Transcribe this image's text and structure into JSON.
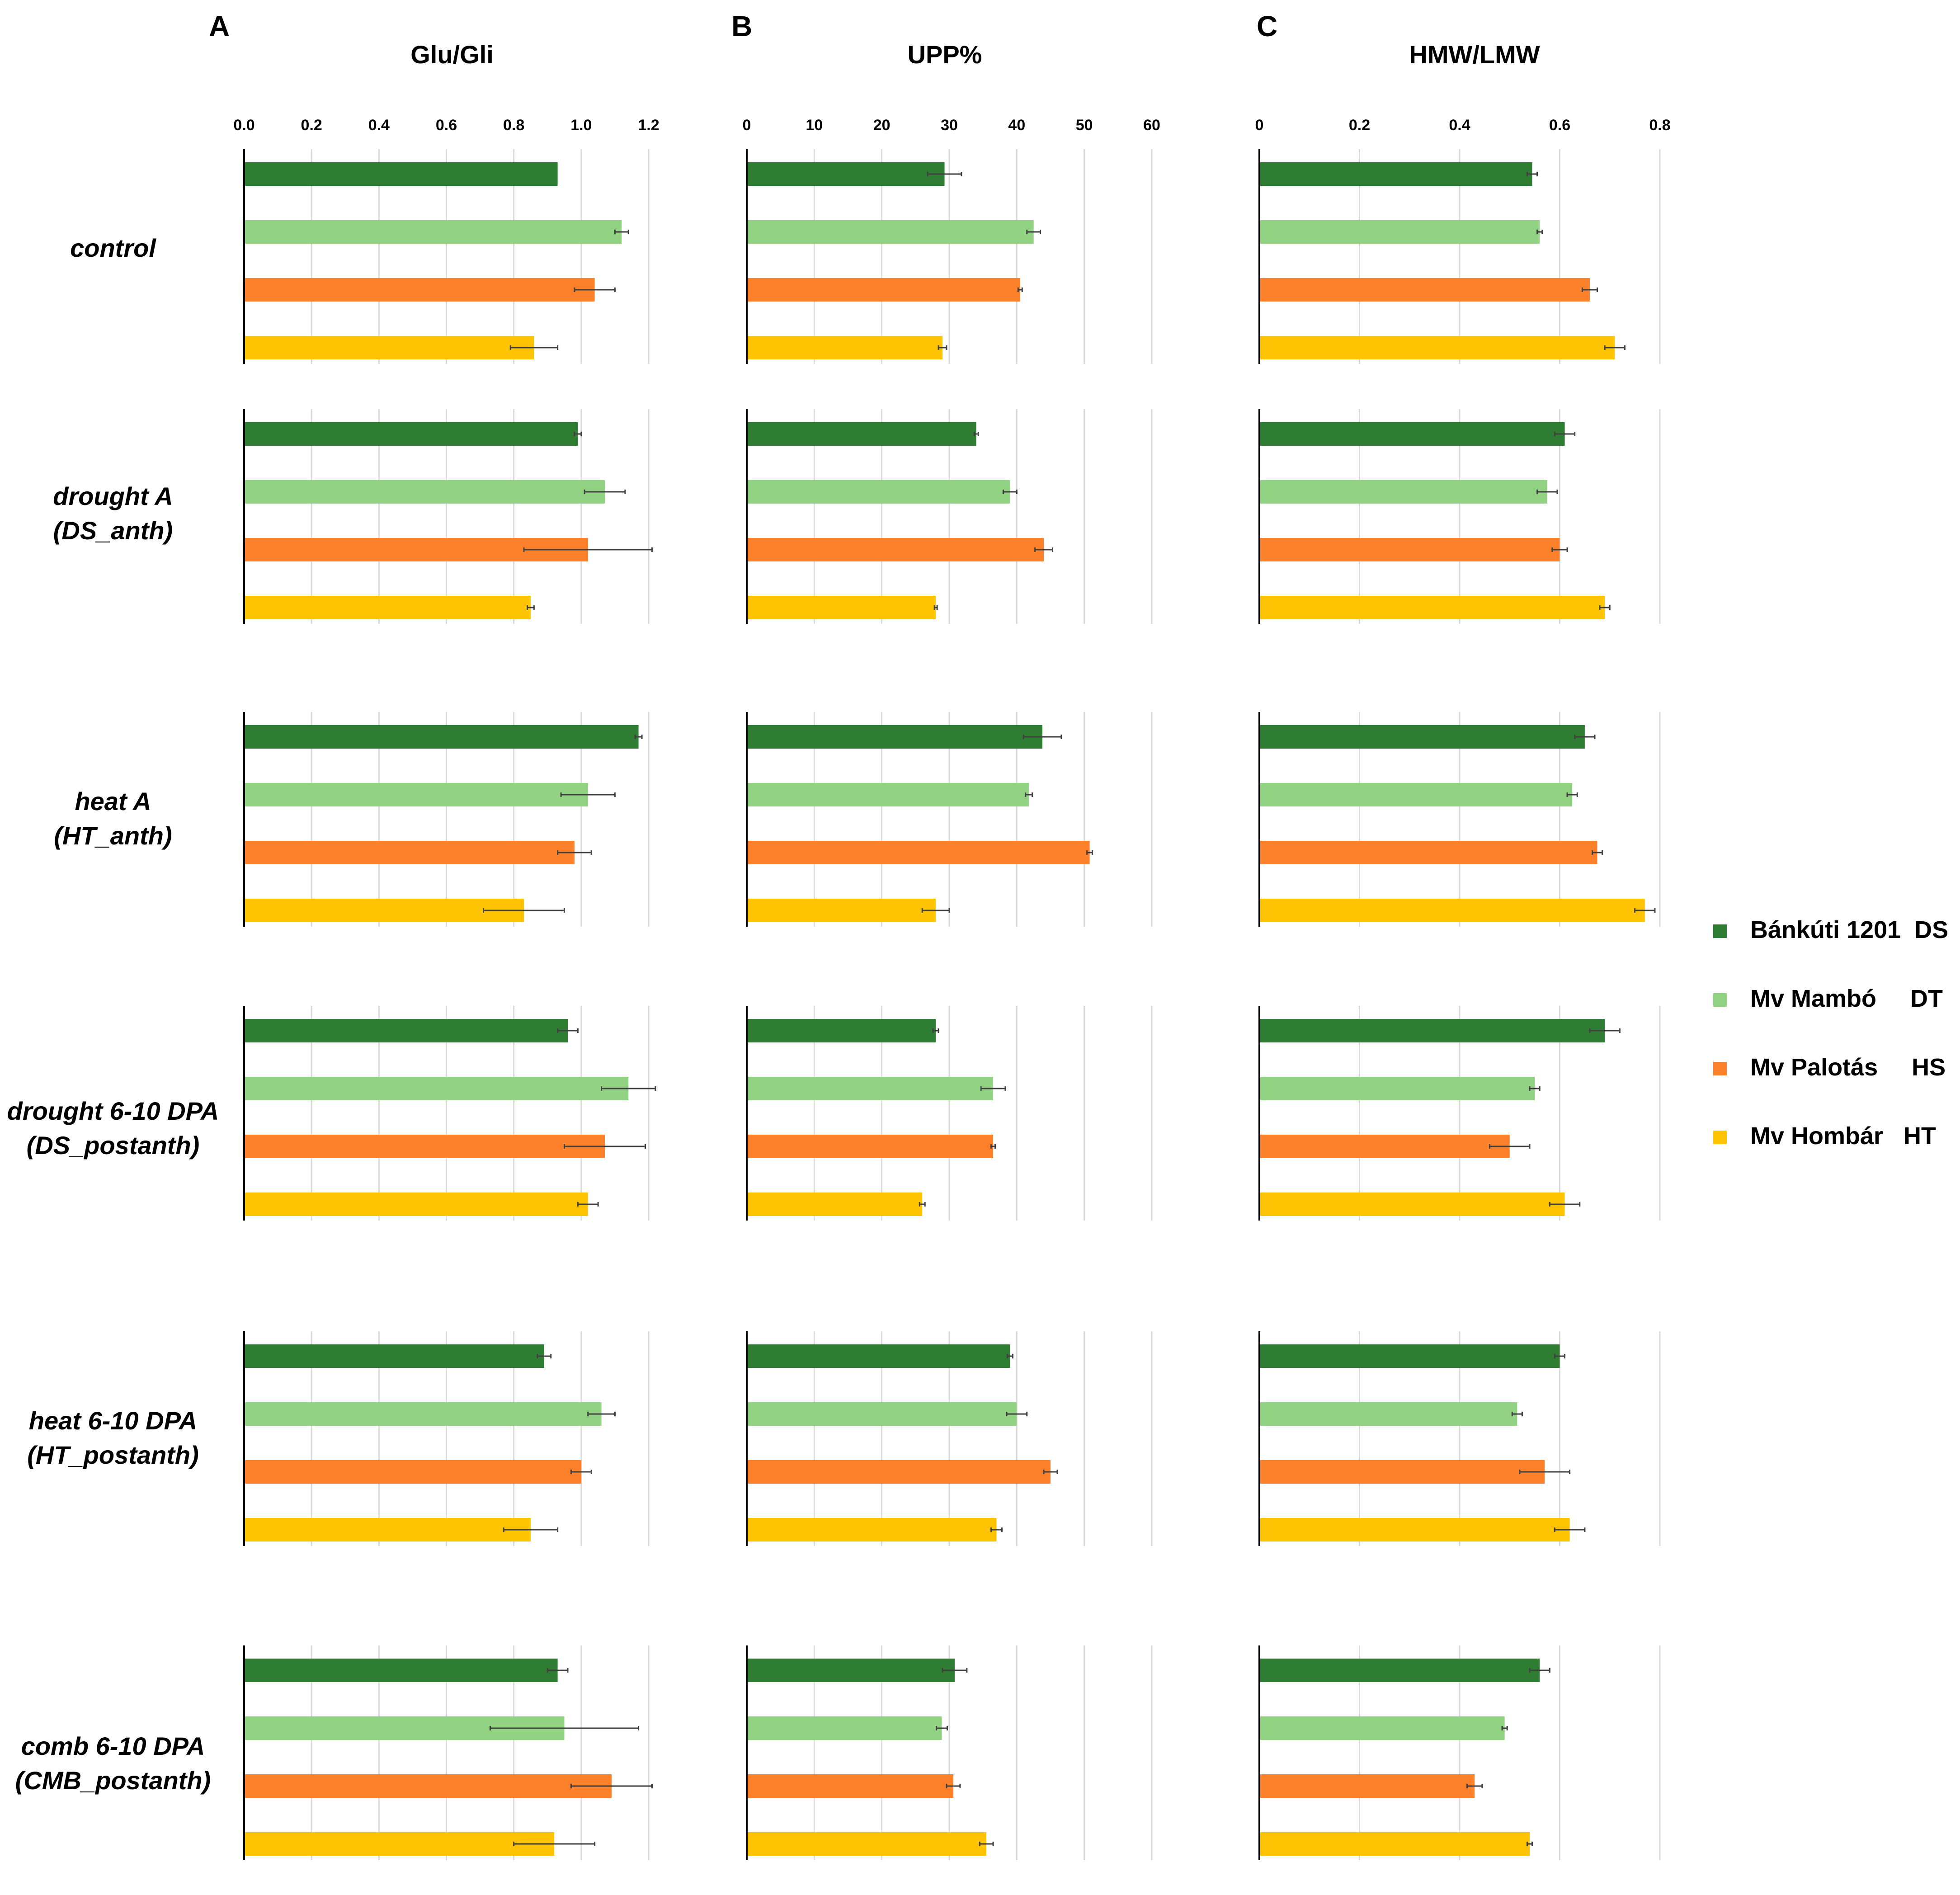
{
  "chart_data": [
    {
      "type": "bar",
      "orientation": "horizontal",
      "panel": "A",
      "title": "Glu/Gli",
      "xlim": [
        0,
        1.2
      ],
      "ticks": [
        "0.0",
        "0.2",
        "0.4",
        "0.6",
        "0.8",
        "1.0",
        "1.2"
      ],
      "grid": true,
      "categories": [
        "control",
        "drought A (DS_anth)",
        "heat A (HT_anth)",
        "drought 6-10 DPA (DS_postanth)",
        "heat 6-10 DPA (HT_postanth)",
        "comb 6-10 DPA (CMB_postanth)"
      ],
      "series": [
        {
          "name": "Bánkúti 1201  DS",
          "values": [
            0.93,
            0.99,
            1.17,
            0.96,
            0.89,
            0.93
          ],
          "errors": [
            0.0,
            0.01,
            0.01,
            0.03,
            0.02,
            0.03
          ]
        },
        {
          "name": "Mv Mambó     DT",
          "values": [
            1.12,
            1.07,
            1.02,
            1.14,
            1.06,
            0.95
          ],
          "errors": [
            0.02,
            0.06,
            0.08,
            0.08,
            0.04,
            0.22
          ]
        },
        {
          "name": "Mv Palotás     HS",
          "values": [
            1.04,
            1.02,
            0.98,
            1.07,
            1.0,
            1.09
          ],
          "errors": [
            0.06,
            0.19,
            0.05,
            0.12,
            0.03,
            0.12
          ]
        },
        {
          "name": "Mv Hombár   HT",
          "values": [
            0.86,
            0.85,
            0.83,
            1.02,
            0.85,
            0.92
          ],
          "errors": [
            0.07,
            0.01,
            0.12,
            0.03,
            0.08,
            0.12
          ]
        }
      ]
    },
    {
      "type": "bar",
      "orientation": "horizontal",
      "panel": "B",
      "title": "UPP%",
      "xlim": [
        0,
        60
      ],
      "ticks": [
        "0",
        "10",
        "20",
        "30",
        "40",
        "50",
        "60"
      ],
      "grid": true,
      "categories": [
        "control",
        "drought A (DS_anth)",
        "heat A (HT_anth)",
        "drought 6-10 DPA (DS_postanth)",
        "heat 6-10 DPA (HT_postanth)",
        "comb 6-10 DPA (CMB_postanth)"
      ],
      "series": [
        {
          "name": "Bánkúti 1201  DS",
          "values": [
            29.3,
            34.0,
            43.8,
            28.0,
            39.0,
            30.8
          ],
          "errors": [
            2.5,
            0.3,
            2.8,
            0.4,
            0.4,
            1.8
          ]
        },
        {
          "name": "Mv Mambó     DT",
          "values": [
            42.5,
            39.0,
            41.8,
            36.5,
            40.0,
            28.9
          ],
          "errors": [
            1.0,
            1.0,
            0.5,
            1.8,
            1.5,
            0.8
          ]
        },
        {
          "name": "Mv Palotás     HS",
          "values": [
            40.5,
            44.0,
            50.8,
            36.5,
            45.0,
            30.6
          ],
          "errors": [
            0.3,
            1.3,
            0.4,
            0.3,
            1.0,
            1.0
          ]
        },
        {
          "name": "Mv Hombár   HT",
          "values": [
            29.0,
            28.0,
            28.0,
            26.0,
            37.0,
            35.5
          ],
          "errors": [
            0.6,
            0.2,
            2.0,
            0.4,
            0.8,
            1.0
          ]
        }
      ]
    },
    {
      "type": "bar",
      "orientation": "horizontal",
      "panel": "C",
      "title": "HMW/LMW",
      "xlim": [
        0,
        0.8
      ],
      "ticks": [
        "0",
        "0.2",
        "0.4",
        "0.6",
        "0.8"
      ],
      "grid": true,
      "categories": [
        "control",
        "drought A (DS_anth)",
        "heat A (HT_anth)",
        "drought 6-10 DPA (DS_postanth)",
        "heat 6-10 DPA (HT_postanth)",
        "comb 6-10 DPA (CMB_postanth)"
      ],
      "series": [
        {
          "name": "Bánkúti 1201  DS",
          "values": [
            0.545,
            0.61,
            0.65,
            0.69,
            0.6,
            0.56
          ],
          "errors": [
            0.01,
            0.02,
            0.02,
            0.03,
            0.01,
            0.02
          ]
        },
        {
          "name": "Mv Mambó     DT",
          "values": [
            0.56,
            0.575,
            0.625,
            0.55,
            0.515,
            0.49
          ],
          "errors": [
            0.005,
            0.02,
            0.01,
            0.01,
            0.01,
            0.005
          ]
        },
        {
          "name": "Mv Palotás     HS",
          "values": [
            0.66,
            0.6,
            0.675,
            0.5,
            0.57,
            0.43
          ],
          "errors": [
            0.015,
            0.015,
            0.01,
            0.04,
            0.05,
            0.015
          ]
        },
        {
          "name": "Mv Hombár   HT",
          "values": [
            0.71,
            0.69,
            0.77,
            0.61,
            0.62,
            0.54
          ],
          "errors": [
            0.02,
            0.01,
            0.02,
            0.03,
            0.03,
            0.005
          ]
        }
      ]
    }
  ],
  "row_labels": [
    [
      "control"
    ],
    [
      "drought A",
      "(DS_anth)"
    ],
    [
      "heat A",
      "(HT_anth)"
    ],
    [
      "drought 6-10 DPA",
      "(DS_postanth)"
    ],
    [
      "heat 6-10 DPA",
      "(HT_postanth)"
    ],
    [
      "comb 6-10 DPA",
      "(CMB_postanth)"
    ]
  ],
  "legend": {
    "items": [
      {
        "label": "Bánkúti 1201  DS",
        "color": "#2e7d32"
      },
      {
        "label": "Mv Mambó     DT",
        "color": "#92d383"
      },
      {
        "label": "Mv Palotás     HS",
        "color": "#fd802a"
      },
      {
        "label": "Mv Hombár   HT",
        "color": "#fec302"
      }
    ]
  },
  "colors": {
    "axis": "#000000",
    "grid": "#d9d9d9",
    "error_bar": "#404040"
  }
}
